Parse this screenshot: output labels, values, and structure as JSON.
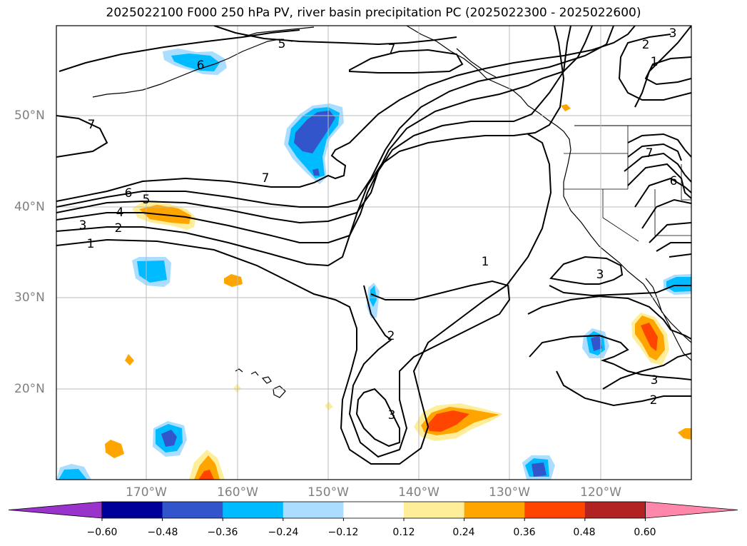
{
  "title": "2025022100 F000 250 hPa PV, river basin precipitation PC (2025022300 - 2025022600)",
  "lat_labels": [
    "50°N",
    "40°N",
    "30°N",
    "20°N"
  ],
  "lon_labels": [
    "170°W",
    "160°W",
    "150°W",
    "140°W",
    "130°W",
    "120°W"
  ],
  "colorbar": {
    "ticks": [
      "−0.60",
      "−0.48",
      "−0.36",
      "−0.24",
      "−0.12",
      "0.12",
      "0.24",
      "0.36",
      "0.48",
      "0.60"
    ],
    "colors": [
      "#9933cc",
      "#000099",
      "#3355cc",
      "#00bbff",
      "#aaddff",
      "#ffffff",
      "#ffee99",
      "#ffa500",
      "#ff4500",
      "#b22222",
      "#ff88aa"
    ]
  },
  "contour_labels": [
    "7",
    "5",
    "6",
    "3",
    "2",
    "1",
    "7",
    "6",
    "4",
    "3",
    "2",
    "1",
    "7",
    "1",
    "2",
    "3",
    "3",
    "2",
    "3",
    "6",
    "1",
    "7"
  ]
}
